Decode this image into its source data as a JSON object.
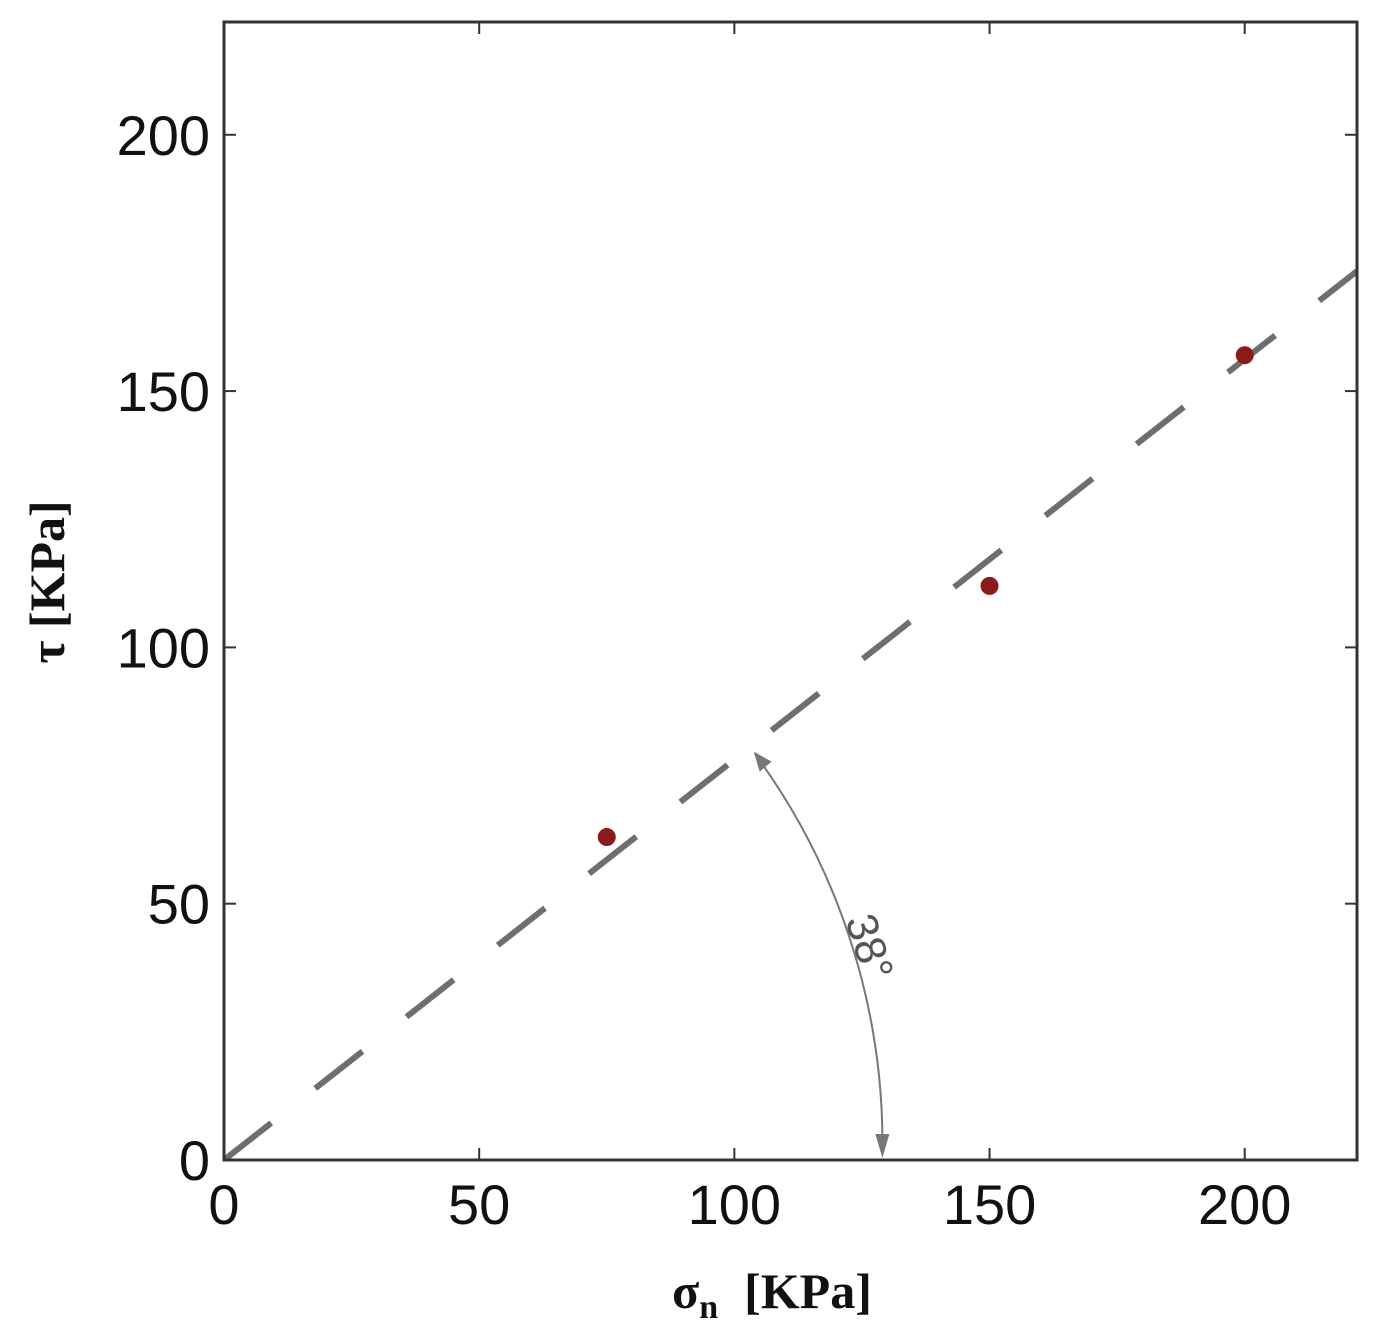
{
  "chart_data": {
    "type": "scatter",
    "title": "",
    "xlabel": "σn [KPa]",
    "xlabel_main": "σ",
    "xlabel_sub": "n",
    "xlabel_units": "[KPa]",
    "ylabel": "τ [KPa]",
    "xlim": [
      0,
      222
    ],
    "ylim": [
      0,
      222
    ],
    "xticks": [
      0,
      50,
      100,
      150,
      200
    ],
    "yticks": [
      0,
      50,
      100,
      150,
      200
    ],
    "grid": false,
    "legend": "none",
    "series": [
      {
        "type": "scatter",
        "color": "#8b1a1a",
        "x": [
          75,
          150,
          200
        ],
        "y": [
          63,
          112,
          157
        ]
      },
      {
        "type": "line",
        "style": "dashed",
        "color": "#6e6e6e",
        "x": [
          0,
          222
        ],
        "y": [
          0,
          173.4
        ]
      }
    ],
    "annotations": [
      {
        "text": "38°",
        "type": "angle-arc",
        "color": "#555555"
      }
    ]
  }
}
